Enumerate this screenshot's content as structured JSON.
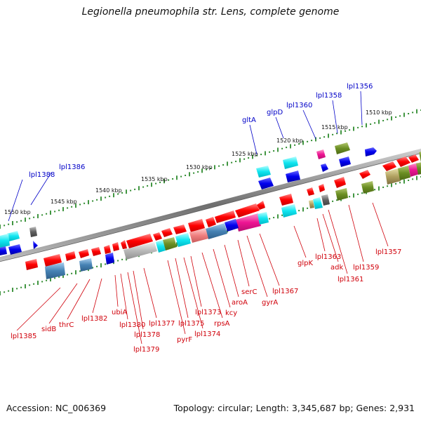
{
  "title": "Legionella pneumophila str. Lens, complete genome",
  "footer": {
    "accession": "Accession: NC_006369",
    "topology": "Topology: circular; Length: 3,345,687 bp; Genes: 2,931"
  },
  "kbp_labels": [
    "1510 kbp",
    "1515 kbp",
    "1520 kbp",
    "1525 kbp",
    "1530 kbp",
    "1535 kbp",
    "1540 kbp",
    "1545 kbp",
    "1550 kbp"
  ],
  "top_labels": [
    "lpl1356",
    "lpl1358",
    "lpl1360",
    "glpD",
    "gltA",
    "lpl1386",
    "lpl1388"
  ],
  "bottom_labels": [
    "lpl1357",
    "lpl1359",
    "lpl1361",
    "adk",
    "lpl1363",
    "glpK",
    "lpl1367",
    "gyrA",
    "serC",
    "aroA",
    "kcy",
    "rpsA",
    "lpl1373",
    "lpl1374",
    "lpl1375",
    "pyrF",
    "lpl1377",
    "lpl1378",
    "lpl1379",
    "lpl1380",
    "ubiA",
    "lpl1382",
    "thrC",
    "sidB",
    "lpl1385"
  ],
  "colors": {
    "gene_forward": "#ff0000",
    "label_red": "#d0000a",
    "label_blue": "#0000c8",
    "cyan": "#00e8f0",
    "blue": "#0000ee",
    "magenta": "#ee1493",
    "olive": "#6b8e23",
    "steel": "#4682b4",
    "grey": "#b0b0b0",
    "backbone": "#777777",
    "tick": "#2e8b2e"
  }
}
